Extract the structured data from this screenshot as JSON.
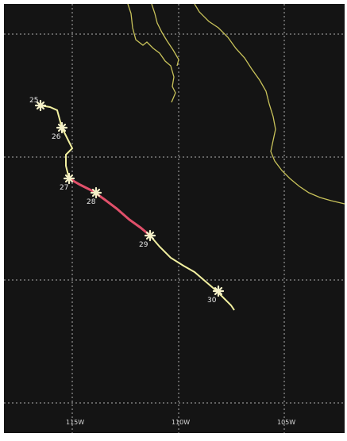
{
  "map": {
    "background_color": "#141414",
    "grid_color": "#c9c9c9",
    "coastline_color": "#c8c25a",
    "track_color": "#f2f0a0",
    "highlight_track_color": "#e0506a",
    "longitude_labels": [
      "115W",
      "110W",
      "105W"
    ],
    "track_markers": [
      {
        "label": "25"
      },
      {
        "label": "26"
      },
      {
        "label": "27"
      },
      {
        "label": "28"
      },
      {
        "label": "29"
      },
      {
        "label": "30"
      }
    ]
  }
}
